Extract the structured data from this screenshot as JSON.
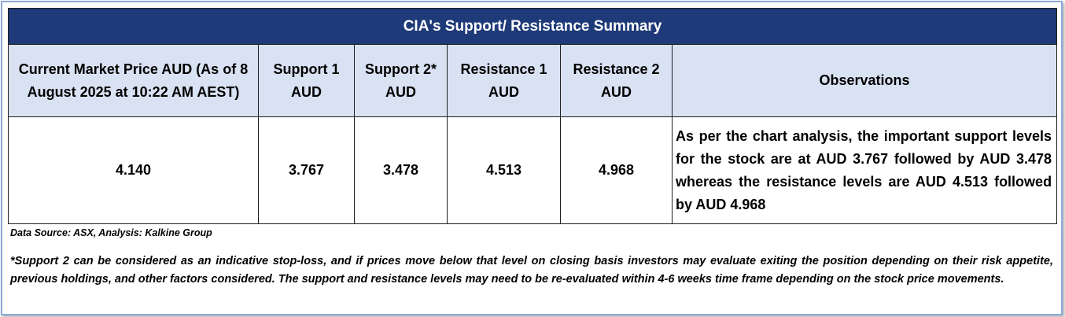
{
  "table": {
    "title": "CIA's Support/  Resistance Summary",
    "headers": {
      "current_price": "Current Market Price AUD (As of 8 August 2025 at 10:22 AM AEST)",
      "support1": "Support 1 AUD",
      "support2": "Support 2* AUD",
      "resistance1": "Resistance 1 AUD",
      "resistance2": "Resistance 2 AUD",
      "observations": "Observations"
    },
    "values": {
      "current_price": "4.140",
      "support1": "3.767",
      "support2": "3.478",
      "resistance1": "4.513",
      "resistance2": "4.968",
      "observations": "As per the chart analysis, the important support levels for the stock are at AUD 3.767 followed by AUD 3.478 whereas the resistance levels are AUD 4.513 followed by AUD 4.968"
    }
  },
  "source": "Data Source: ASX, Analysis: Kalkine Group",
  "footnote": "*Support 2 can be considered as an indicative stop-loss, and if prices move below that level on closing basis investors may evaluate exiting the position depending on their risk appetite, previous holdings, and other factors considered. The support and resistance levels may need to be re-evaluated within 4-6 weeks time frame depending on the stock price movements.",
  "colors": {
    "title_bg": "#1f3a78",
    "header_bg": "#d9e2f3",
    "frame_border": "#8eaadb"
  }
}
